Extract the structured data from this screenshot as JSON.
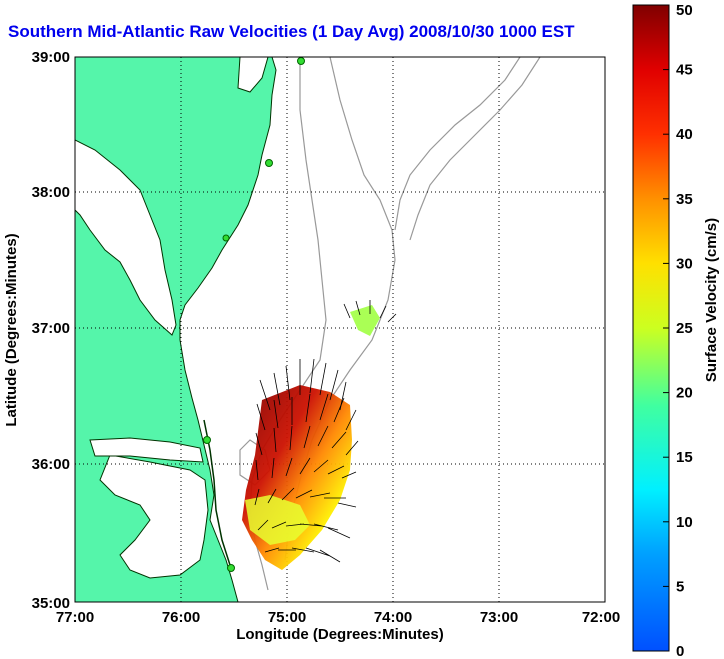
{
  "title": "Southern Mid-Atlantic Raw Velocities (1 Day Avg) 2008/10/30 1000 EST",
  "map": {
    "x_axis_label": "Longitude (Degrees:Minutes)",
    "y_axis_label": "Latitude (Degrees:Minutes)",
    "lon_range": [
      -77,
      -72
    ],
    "lat_range": [
      35,
      39
    ],
    "x_ticks": [
      "77:00",
      "76:00",
      "75:00",
      "74:00",
      "73:00",
      "72:00"
    ],
    "y_ticks": [
      "35:00",
      "36:00",
      "37:00",
      "38:00",
      "39:00"
    ],
    "grid": "dotted",
    "land_color": "#55f5aa",
    "water_color": "#ffffff",
    "station_color": "#33dd33"
  },
  "colorbar": {
    "label": "Surface Velocity (cm/s)",
    "min": 0,
    "max": 50,
    "ticks": [
      "0",
      "5",
      "10",
      "15",
      "20",
      "25",
      "30",
      "35",
      "40",
      "45",
      "50"
    ]
  }
}
